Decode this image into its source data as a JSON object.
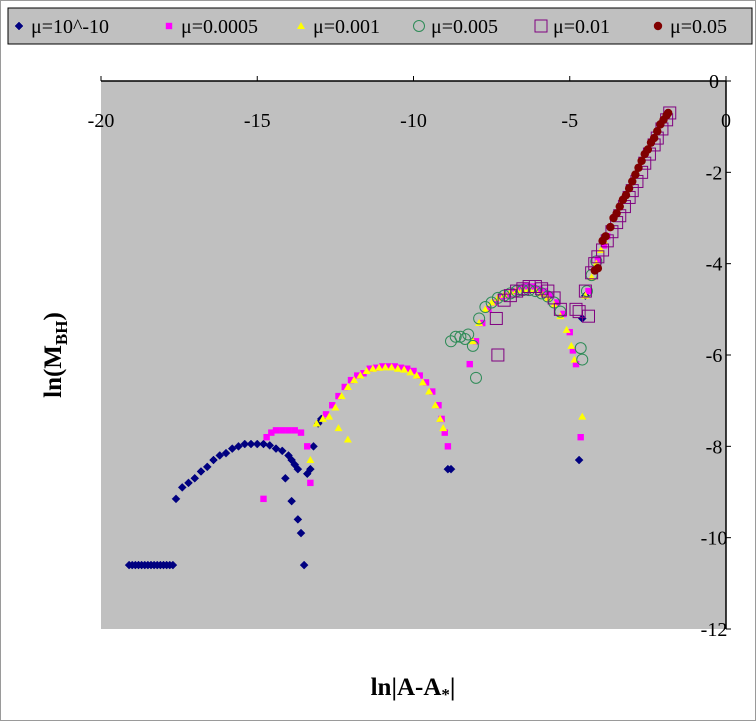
{
  "chart_data": {
    "type": "scatter",
    "xlabel": "ln|A-A*|",
    "ylabel": "ln(MBH)",
    "xlim": [
      -20,
      0
    ],
    "ylim": [
      -12,
      0
    ],
    "x_ticks": [
      -20,
      -15,
      -10,
      -5,
      0
    ],
    "y_ticks": [
      0,
      -2,
      -4,
      -6,
      -8,
      -10,
      -12
    ],
    "grid": false,
    "legend_position": "top",
    "plot_background": "#c0c0c0",
    "series": [
      {
        "name": "μ=10^-10",
        "marker": "diamond",
        "color": "#000080",
        "points": [
          [
            -19.1,
            -10.6
          ],
          [
            -19.0,
            -10.6
          ],
          [
            -18.9,
            -10.6
          ],
          [
            -18.8,
            -10.6
          ],
          [
            -18.7,
            -10.6
          ],
          [
            -18.6,
            -10.6
          ],
          [
            -18.5,
            -10.6
          ],
          [
            -18.4,
            -10.6
          ],
          [
            -18.3,
            -10.6
          ],
          [
            -18.2,
            -10.6
          ],
          [
            -18.1,
            -10.6
          ],
          [
            -18.0,
            -10.6
          ],
          [
            -17.9,
            -10.6
          ],
          [
            -17.8,
            -10.6
          ],
          [
            -17.7,
            -10.6
          ],
          [
            -17.6,
            -9.15
          ],
          [
            -17.4,
            -8.9
          ],
          [
            -17.2,
            -8.8
          ],
          [
            -17.0,
            -8.7
          ],
          [
            -16.8,
            -8.55
          ],
          [
            -16.6,
            -8.45
          ],
          [
            -16.4,
            -8.3
          ],
          [
            -16.2,
            -8.2
          ],
          [
            -16.0,
            -8.15
          ],
          [
            -15.8,
            -8.05
          ],
          [
            -15.6,
            -8.0
          ],
          [
            -15.4,
            -7.95
          ],
          [
            -15.2,
            -7.95
          ],
          [
            -15.0,
            -7.95
          ],
          [
            -14.8,
            -7.95
          ],
          [
            -14.6,
            -7.98
          ],
          [
            -14.4,
            -8.05
          ],
          [
            -14.2,
            -8.1
          ],
          [
            -14.0,
            -8.2
          ],
          [
            -13.9,
            -8.3
          ],
          [
            -13.8,
            -8.4
          ],
          [
            -13.7,
            -8.5
          ],
          [
            -14.1,
            -8.7
          ],
          [
            -13.9,
            -9.2
          ],
          [
            -13.7,
            -9.6
          ],
          [
            -13.6,
            -9.9
          ],
          [
            -13.5,
            -10.6
          ],
          [
            -13.4,
            -8.6
          ],
          [
            -13.3,
            -8.5
          ],
          [
            -13.2,
            -8.0
          ],
          [
            -13.05,
            -7.5
          ],
          [
            -12.95,
            -7.4
          ],
          [
            -8.9,
            -8.5
          ],
          [
            -8.8,
            -8.5
          ],
          [
            -4.7,
            -8.3
          ],
          [
            -4.6,
            -5.2
          ],
          [
            -4.5,
            -4.7
          ]
        ]
      },
      {
        "name": "μ=0.0005",
        "marker": "square",
        "color": "#ff00ff",
        "points": [
          [
            -14.8,
            -9.15
          ],
          [
            -14.7,
            -7.8
          ],
          [
            -14.55,
            -7.7
          ],
          [
            -14.4,
            -7.65
          ],
          [
            -14.2,
            -7.65
          ],
          [
            -14.0,
            -7.65
          ],
          [
            -13.8,
            -7.65
          ],
          [
            -13.6,
            -7.7
          ],
          [
            -13.4,
            -8.0
          ],
          [
            -13.3,
            -8.8
          ],
          [
            -12.8,
            -7.3
          ],
          [
            -12.6,
            -7.1
          ],
          [
            -12.4,
            -6.9
          ],
          [
            -12.2,
            -6.7
          ],
          [
            -12.0,
            -6.55
          ],
          [
            -11.8,
            -6.45
          ],
          [
            -11.6,
            -6.4
          ],
          [
            -11.4,
            -6.3
          ],
          [
            -11.2,
            -6.28
          ],
          [
            -11.0,
            -6.25
          ],
          [
            -10.8,
            -6.25
          ],
          [
            -10.6,
            -6.25
          ],
          [
            -10.4,
            -6.28
          ],
          [
            -10.2,
            -6.3
          ],
          [
            -10.0,
            -6.35
          ],
          [
            -9.8,
            -6.45
          ],
          [
            -9.6,
            -6.6
          ],
          [
            -9.4,
            -6.8
          ],
          [
            -9.2,
            -7.1
          ],
          [
            -9.1,
            -7.4
          ],
          [
            -9.0,
            -7.7
          ],
          [
            -8.9,
            -8.0
          ],
          [
            -8.2,
            -6.2
          ],
          [
            -8.0,
            -5.7
          ],
          [
            -7.8,
            -5.3
          ],
          [
            -7.6,
            -5.0
          ],
          [
            -7.4,
            -4.85
          ],
          [
            -7.2,
            -4.75
          ],
          [
            -7.0,
            -4.7
          ],
          [
            -6.8,
            -4.6
          ],
          [
            -6.6,
            -4.55
          ],
          [
            -6.4,
            -4.5
          ],
          [
            -6.2,
            -4.5
          ],
          [
            -6.0,
            -4.55
          ],
          [
            -5.8,
            -4.6
          ],
          [
            -5.6,
            -4.7
          ],
          [
            -5.4,
            -4.85
          ],
          [
            -5.2,
            -5.1
          ],
          [
            -5.0,
            -5.5
          ],
          [
            -4.9,
            -5.9
          ],
          [
            -4.8,
            -6.2
          ],
          [
            -4.65,
            -7.8
          ],
          [
            -4.4,
            -4.6
          ],
          [
            -4.2,
            -4.1
          ],
          [
            -4.1,
            -3.9
          ],
          [
            -3.9,
            -3.6
          ],
          [
            -3.8,
            -3.4
          ]
        ]
      },
      {
        "name": "μ=0.001",
        "marker": "triangle",
        "color": "#ffff00",
        "points": [
          [
            -13.3,
            -8.3
          ],
          [
            -13.1,
            -7.5
          ],
          [
            -12.9,
            -7.4
          ],
          [
            -12.7,
            -7.35
          ],
          [
            -12.5,
            -7.15
          ],
          [
            -12.3,
            -6.9
          ],
          [
            -12.1,
            -6.7
          ],
          [
            -11.9,
            -6.55
          ],
          [
            -11.7,
            -6.45
          ],
          [
            -11.5,
            -6.35
          ],
          [
            -11.3,
            -6.3
          ],
          [
            -11.1,
            -6.28
          ],
          [
            -10.9,
            -6.27
          ],
          [
            -10.7,
            -6.27
          ],
          [
            -10.5,
            -6.3
          ],
          [
            -10.3,
            -6.32
          ],
          [
            -10.1,
            -6.38
          ],
          [
            -9.9,
            -6.45
          ],
          [
            -9.7,
            -6.6
          ],
          [
            -9.5,
            -6.8
          ],
          [
            -9.3,
            -7.1
          ],
          [
            -9.15,
            -7.4
          ],
          [
            -9.05,
            -7.6
          ],
          [
            -12.1,
            -7.85
          ],
          [
            -12.4,
            -7.6
          ],
          [
            -8.1,
            -5.7
          ],
          [
            -7.9,
            -5.3
          ],
          [
            -7.7,
            -5.0
          ],
          [
            -7.5,
            -4.85
          ],
          [
            -7.3,
            -4.75
          ],
          [
            -7.1,
            -4.68
          ],
          [
            -6.9,
            -4.62
          ],
          [
            -6.7,
            -4.58
          ],
          [
            -6.5,
            -4.56
          ],
          [
            -6.3,
            -4.56
          ],
          [
            -6.1,
            -4.58
          ],
          [
            -5.9,
            -4.65
          ],
          [
            -5.7,
            -4.75
          ],
          [
            -5.5,
            -4.9
          ],
          [
            -5.3,
            -5.15
          ],
          [
            -5.1,
            -5.45
          ],
          [
            -4.95,
            -5.8
          ],
          [
            -4.85,
            -6.1
          ],
          [
            -4.6,
            -7.35
          ],
          [
            -4.5,
            -4.7
          ],
          [
            -4.3,
            -4.3
          ],
          [
            -4.15,
            -4.0
          ],
          [
            -4.0,
            -3.7
          ],
          [
            -3.9,
            -3.5
          ]
        ]
      },
      {
        "name": "μ=0.005",
        "marker": "circle",
        "color": "#2e8b57",
        "points": [
          [
            -8.8,
            -5.7
          ],
          [
            -8.65,
            -5.6
          ],
          [
            -8.5,
            -5.6
          ],
          [
            -8.35,
            -5.65
          ],
          [
            -8.25,
            -5.55
          ],
          [
            -8.1,
            -5.8
          ],
          [
            -8.0,
            -6.5
          ],
          [
            -7.9,
            -5.2
          ],
          [
            -7.7,
            -4.95
          ],
          [
            -7.5,
            -4.85
          ],
          [
            -7.3,
            -4.75
          ],
          [
            -7.1,
            -4.7
          ],
          [
            -6.9,
            -4.65
          ],
          [
            -6.7,
            -4.6
          ],
          [
            -6.5,
            -4.58
          ],
          [
            -6.3,
            -4.58
          ],
          [
            -6.1,
            -4.6
          ],
          [
            -5.9,
            -4.65
          ],
          [
            -5.7,
            -4.72
          ],
          [
            -5.5,
            -4.85
          ],
          [
            -5.3,
            -5.05
          ],
          [
            -4.65,
            -5.85
          ],
          [
            -4.6,
            -6.1
          ],
          [
            -4.45,
            -4.6
          ],
          [
            -4.3,
            -4.25
          ],
          [
            -4.15,
            -3.95
          ]
        ]
      },
      {
        "name": "μ=0.01",
        "marker": "square-open",
        "color": "#800080",
        "points": [
          [
            -7.35,
            -5.2
          ],
          [
            -7.3,
            -6.0
          ],
          [
            -7.1,
            -4.8
          ],
          [
            -6.9,
            -4.7
          ],
          [
            -6.7,
            -4.6
          ],
          [
            -6.5,
            -4.55
          ],
          [
            -6.3,
            -4.5
          ],
          [
            -6.1,
            -4.5
          ],
          [
            -5.9,
            -4.55
          ],
          [
            -5.7,
            -4.6
          ],
          [
            -5.5,
            -4.75
          ],
          [
            -5.3,
            -5.0
          ],
          [
            -4.8,
            -5.0
          ],
          [
            -4.7,
            -5.05
          ],
          [
            -4.5,
            -4.6
          ],
          [
            -4.4,
            -5.15
          ],
          [
            -4.3,
            -4.2
          ],
          [
            -4.2,
            -4.0
          ],
          [
            -4.1,
            -3.85
          ],
          [
            -3.95,
            -3.7
          ],
          [
            -3.8,
            -3.5
          ],
          [
            -3.65,
            -3.3
          ],
          [
            -3.5,
            -3.1
          ],
          [
            -3.4,
            -2.95
          ],
          [
            -3.25,
            -2.75
          ],
          [
            -3.1,
            -2.55
          ],
          [
            -3.0,
            -2.4
          ],
          [
            -2.85,
            -2.2
          ],
          [
            -2.7,
            -2.0
          ],
          [
            -2.6,
            -1.8
          ],
          [
            -2.45,
            -1.6
          ],
          [
            -2.3,
            -1.4
          ],
          [
            -2.2,
            -1.25
          ],
          [
            -2.05,
            -1.05
          ],
          [
            -1.9,
            -0.85
          ],
          [
            -1.8,
            -0.7
          ]
        ]
      },
      {
        "name": "μ=0.05",
        "marker": "circle",
        "color": "#800000",
        "points": [
          [
            -4.2,
            -4.15
          ],
          [
            -4.1,
            -4.1
          ],
          [
            -3.95,
            -3.5
          ],
          [
            -3.85,
            -3.4
          ],
          [
            -3.7,
            -3.2
          ],
          [
            -3.6,
            -3.0
          ],
          [
            -3.5,
            -2.9
          ],
          [
            -3.4,
            -2.75
          ],
          [
            -3.3,
            -2.6
          ],
          [
            -3.2,
            -2.5
          ],
          [
            -3.1,
            -2.35
          ],
          [
            -3.0,
            -2.2
          ],
          [
            -2.9,
            -2.05
          ],
          [
            -2.8,
            -1.9
          ],
          [
            -2.7,
            -1.75
          ],
          [
            -2.6,
            -1.6
          ],
          [
            -2.5,
            -1.5
          ],
          [
            -2.4,
            -1.35
          ],
          [
            -2.3,
            -1.25
          ],
          [
            -2.2,
            -1.1
          ],
          [
            -2.1,
            -0.95
          ],
          [
            -2.0,
            -0.85
          ],
          [
            -1.9,
            -0.75
          ],
          [
            -1.85,
            -0.7
          ]
        ]
      }
    ]
  }
}
